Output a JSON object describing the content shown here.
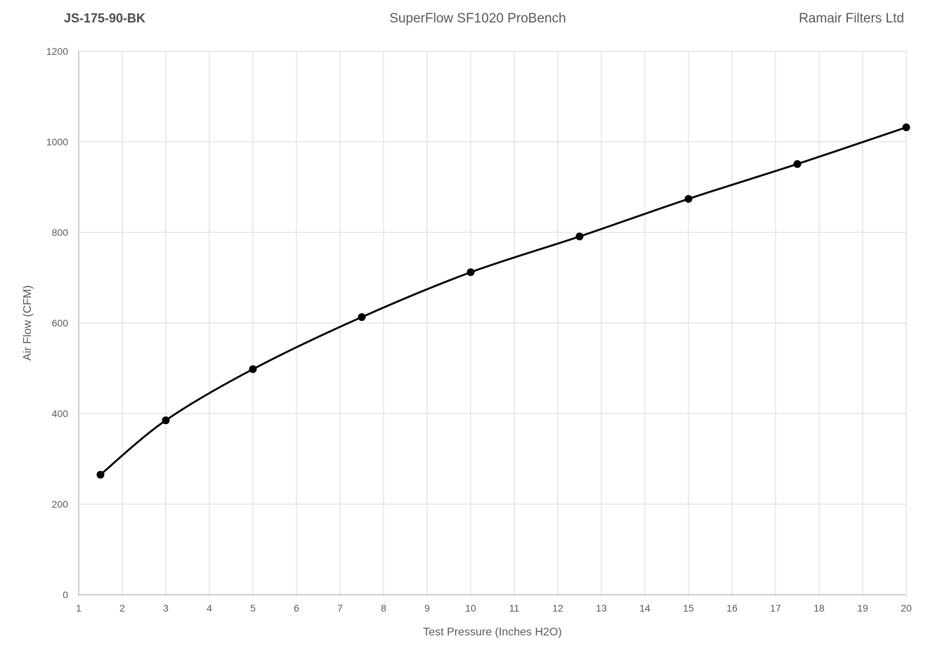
{
  "header": {
    "part_number": "JS-175-90-BK",
    "bench_model": "SuperFlow SF1020 ProBench",
    "company": "Ramair Filters Ltd"
  },
  "chart_data": {
    "type": "line",
    "title": "SuperFlow SF1020 ProBench",
    "subtitle_left": "JS-175-90-BK",
    "subtitle_right": "Ramair Filters Ltd",
    "xlabel": "Test Pressure (Inches H2O)",
    "ylabel": "Air Flow (CFM)",
    "series": [
      {
        "name": "JS-175-90-BK",
        "x": [
          1.5,
          3,
          5,
          7.5,
          10,
          12.5,
          15,
          17.5,
          20
        ],
        "y": [
          265,
          385,
          498,
          613,
          712,
          791,
          874,
          951,
          1032
        ]
      }
    ],
    "xlim": [
      1,
      20
    ],
    "ylim": [
      0,
      1200
    ],
    "x_ticks": [
      1,
      2,
      3,
      4,
      5,
      6,
      7,
      8,
      9,
      10,
      11,
      12,
      13,
      14,
      15,
      16,
      17,
      18,
      19,
      20
    ],
    "y_ticks": [
      0,
      200,
      400,
      600,
      800,
      1000,
      1200
    ],
    "grid": true,
    "legend": "none",
    "smooth_line": true,
    "marker": "filled-circle",
    "colors": {
      "line": "#000000",
      "marker": "#000000",
      "grid": "#d9d9d9",
      "axis": "#bfbfbf",
      "text": "#595959"
    }
  }
}
